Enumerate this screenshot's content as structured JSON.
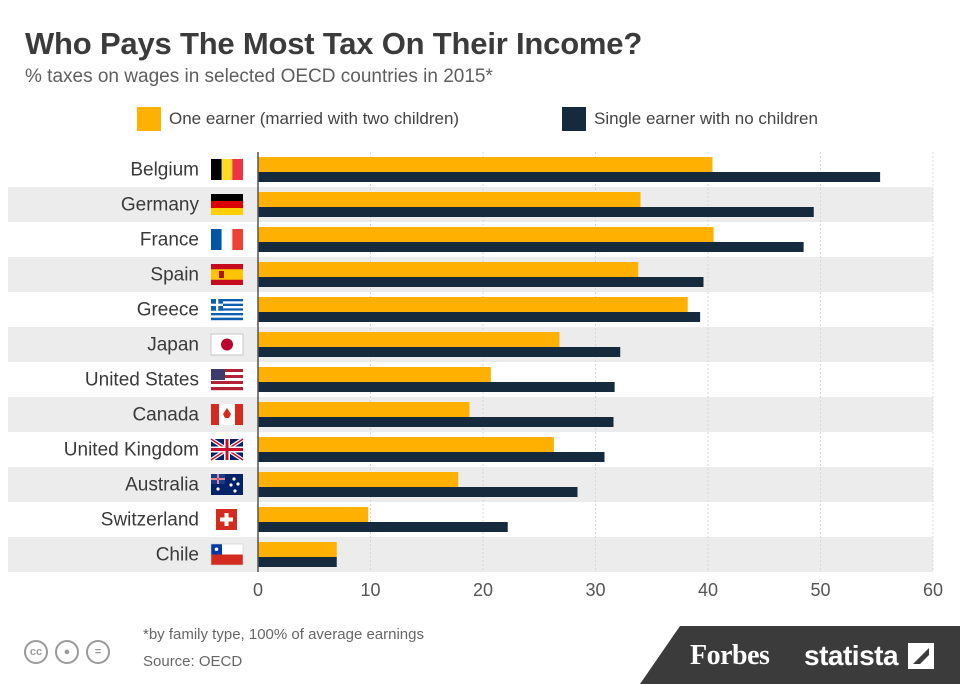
{
  "header": {
    "title": "Who Pays The Most Tax On Their Income?",
    "subtitle": "% taxes on wages in selected OECD countries in 2015*"
  },
  "legend": {
    "married": "One earner (married with two children)",
    "single": "Single earner with no children"
  },
  "colors": {
    "married": "#ffb000",
    "single": "#152a3d",
    "stripe": "#ececec",
    "grid": "#d9d9d9"
  },
  "chart_data": {
    "type": "bar",
    "orientation": "horizontal",
    "title": "Who Pays The Most Tax On Their Income?",
    "subtitle": "% taxes on wages in selected OECD countries in 2015*",
    "categories": [
      "Belgium",
      "Germany",
      "France",
      "Spain",
      "Greece",
      "Japan",
      "United States",
      "Canada",
      "United Kingdom",
      "Australia",
      "Switzerland",
      "Chile"
    ],
    "series": [
      {
        "name": "One earner (married with two children)",
        "values": [
          40.4,
          34.0,
          40.5,
          33.8,
          38.2,
          26.8,
          20.7,
          18.8,
          26.3,
          17.8,
          9.8,
          7.0
        ]
      },
      {
        "name": "Single earner with no children",
        "values": [
          55.3,
          49.4,
          48.5,
          39.6,
          39.3,
          32.2,
          31.7,
          31.6,
          30.8,
          28.4,
          22.2,
          7.0
        ]
      }
    ],
    "xlim": [
      0,
      60
    ],
    "xticks": [
      "0",
      "10",
      "20",
      "30",
      "40",
      "50",
      "60"
    ],
    "xlabel": "",
    "ylabel": "",
    "grid": true,
    "legend_position": "top"
  },
  "flags": [
    {
      "country": "Belgium",
      "icon": "belgium-flag-icon"
    },
    {
      "country": "Germany",
      "icon": "germany-flag-icon"
    },
    {
      "country": "France",
      "icon": "france-flag-icon"
    },
    {
      "country": "Spain",
      "icon": "spain-flag-icon"
    },
    {
      "country": "Greece",
      "icon": "greece-flag-icon"
    },
    {
      "country": "Japan",
      "icon": "japan-flag-icon"
    },
    {
      "country": "United States",
      "icon": "usa-flag-icon"
    },
    {
      "country": "Canada",
      "icon": "canada-flag-icon"
    },
    {
      "country": "United Kingdom",
      "icon": "uk-flag-icon"
    },
    {
      "country": "Australia",
      "icon": "australia-flag-icon"
    },
    {
      "country": "Switzerland",
      "icon": "switzerland-flag-icon"
    },
    {
      "country": "Chile",
      "icon": "chile-flag-icon"
    }
  ],
  "footer": {
    "note": "*by family type, 100% of average earnings",
    "source": "Source: OECD",
    "license_icons": [
      "cc-icon",
      "by-icon",
      "nd-icon"
    ],
    "brand_forbes": "Forbes",
    "brand_statista": "statista"
  }
}
